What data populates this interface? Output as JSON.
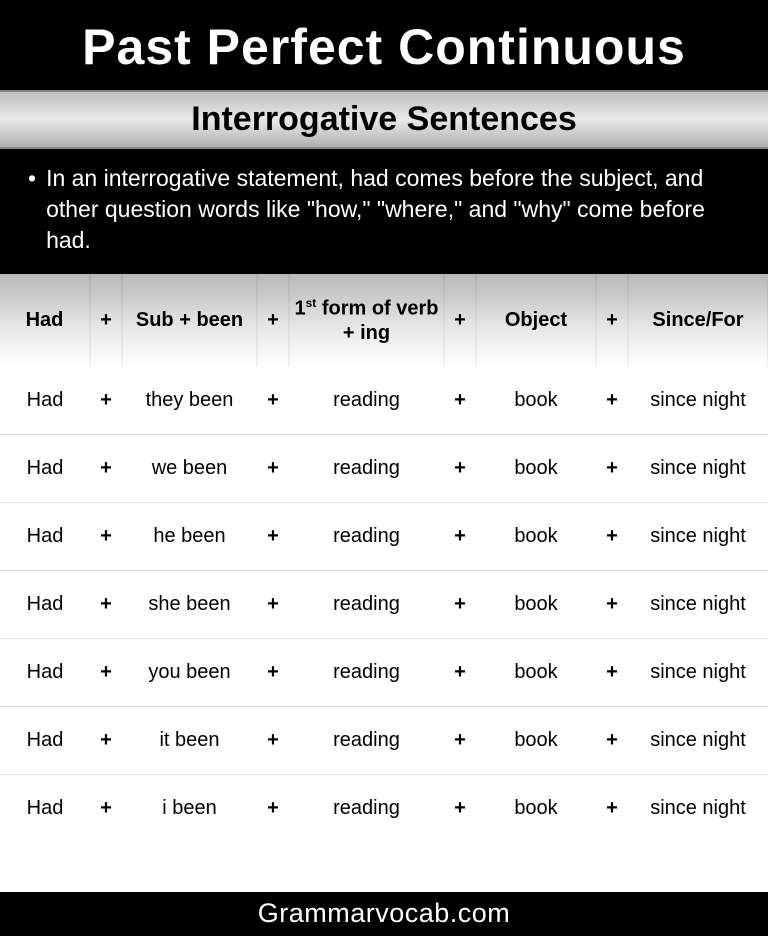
{
  "title": "Past Perfect Continuous",
  "subtitle": "Interrogative Sentences",
  "description": "In an interrogative statement, had comes before the subject, and other question words like \"how,\" \"where,\" and \"why\" come before had.",
  "colors": {
    "header_bg": "#000000",
    "header_text": "#ffffff",
    "subtitle_gradient_top": "#c0c0c0",
    "subtitle_gradient_bottom": "#b0b0b0",
    "table_header_gradient_top": "#b8b8b8",
    "table_header_gradient_bottom": "#ffffff",
    "row_border": "#dcdcdc"
  },
  "table": {
    "type": "table",
    "headers": {
      "had": "Had",
      "sub": "Sub + been",
      "verb_pre": "1",
      "verb_sup": "st",
      "verb_post": " form of verb + ing",
      "object": "Object",
      "since": "Since/For",
      "plus": "+"
    },
    "column_widths": {
      "had": 90,
      "plus": 32,
      "sub": 135,
      "verb": 155,
      "obj": 120,
      "since": 140
    },
    "header_fontsize": 20,
    "cell_fontsize": 20,
    "rows": [
      {
        "had": "Had",
        "sub": "they been",
        "verb": "reading",
        "obj": "book",
        "since": "since night"
      },
      {
        "had": "Had",
        "sub": "we been",
        "verb": "reading",
        "obj": "book",
        "since": "since night"
      },
      {
        "had": "Had",
        "sub": "he been",
        "verb": "reading",
        "obj": "book",
        "since": "since night"
      },
      {
        "had": "Had",
        "sub": "she been",
        "verb": "reading",
        "obj": "book",
        "since": "since night"
      },
      {
        "had": "Had",
        "sub": "you been",
        "verb": "reading",
        "obj": "book",
        "since": "since night"
      },
      {
        "had": "Had",
        "sub": "it been",
        "verb": "reading",
        "obj": "book",
        "since": "since night"
      },
      {
        "had": "Had",
        "sub": "i been",
        "verb": "reading",
        "obj": "book",
        "since": "since night"
      }
    ]
  },
  "footer": "Grammarvocab.com"
}
